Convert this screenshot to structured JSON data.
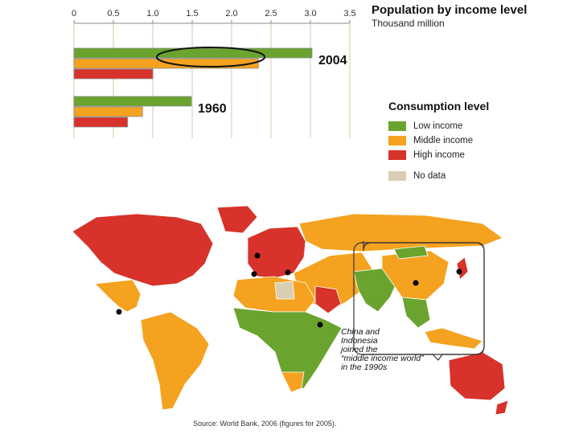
{
  "chart_data": {
    "type": "bar",
    "orientation": "horizontal",
    "title": "Population by income level",
    "subtitle": "Thousand million",
    "xlim": [
      0,
      3.5
    ],
    "xticks": [
      "0",
      "0.5",
      "1.0",
      "1.5",
      "2.0",
      "2.5",
      "3.0",
      "3.5"
    ],
    "categories": [
      "2004",
      "1960"
    ],
    "series": [
      {
        "name": "Low income",
        "color": "#6aa42f",
        "values": [
          3.02,
          1.49
        ]
      },
      {
        "name": "Middle income",
        "color": "#f4a21f",
        "values": [
          2.34,
          0.87
        ]
      },
      {
        "name": "High income",
        "color": "#d7322b",
        "values": [
          1.0,
          0.68
        ]
      }
    ],
    "highlight": {
      "category": "2004",
      "xrange": [
        1.05,
        2.42
      ],
      "color": "#111111"
    },
    "grid": true
  },
  "legend": {
    "title": "Consumption level",
    "items": [
      {
        "label": "Low income",
        "color": "#6aa42f"
      },
      {
        "label": "Middle income",
        "color": "#f4a21f"
      },
      {
        "label": "High income",
        "color": "#d7322b"
      },
      {
        "label": "No data",
        "color": "#d9ceb2"
      }
    ]
  },
  "map": {
    "annotation_lines": [
      "China and",
      "Indonesia",
      "joined the",
      "“middle income world”",
      "in the 1990s"
    ]
  },
  "source": "Source: World Bank, 2006 (figures for 2005)."
}
